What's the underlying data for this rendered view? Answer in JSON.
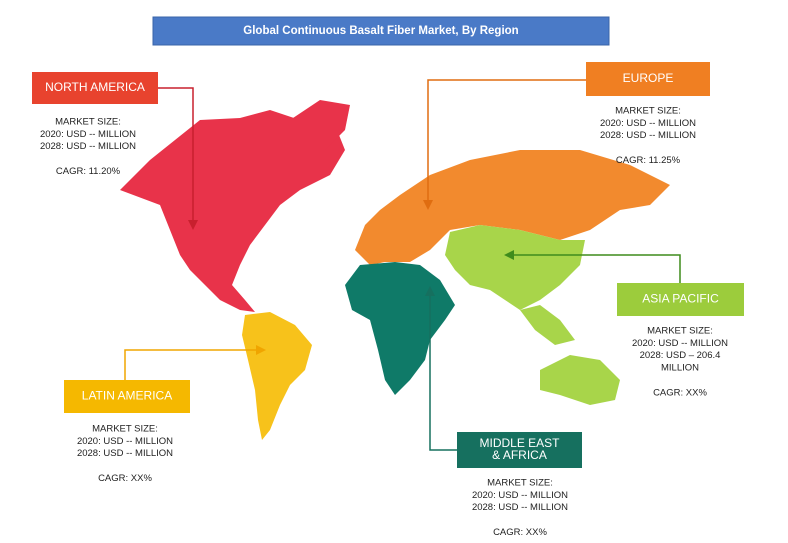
{
  "title": "Global Continuous Basalt Fiber Market, By Region",
  "regions": [
    {
      "name": [
        "NORTH AMERICA"
      ],
      "market_size": "MARKET SIZE:",
      "lines": [
        "2020: USD -- MILLION",
        "2028: USD -- MILLION"
      ],
      "cagr": "CAGR: 11.20%"
    },
    {
      "name": [
        "EUROPE"
      ],
      "market_size": "MARKET SIZE:",
      "lines": [
        "2020: USD -- MILLION",
        "2028: USD -- MILLION"
      ],
      "cagr": "CAGR: 11.25%"
    },
    {
      "name": [
        "ASIA PACIFIC"
      ],
      "market_size": "MARKET SIZE:",
      "lines": [
        "2020: USD -- MILLION",
        "2028: USD – 206.4",
        "MILLION"
      ],
      "cagr": "CAGR: XX%"
    },
    {
      "name": [
        "LATIN AMERICA"
      ],
      "market_size": "MARKET SIZE:",
      "lines": [
        "2020: USD -- MILLION",
        "2028: USD -- MILLION"
      ],
      "cagr": "CAGR: XX%"
    },
    {
      "name": [
        "MIDDLE EAST",
        "& AFRICA"
      ],
      "market_size": "MARKET SIZE:",
      "lines": [
        "2020: USD -- MILLION",
        "2028: USD -- MILLION"
      ],
      "cagr": "CAGR: XX%"
    }
  ]
}
